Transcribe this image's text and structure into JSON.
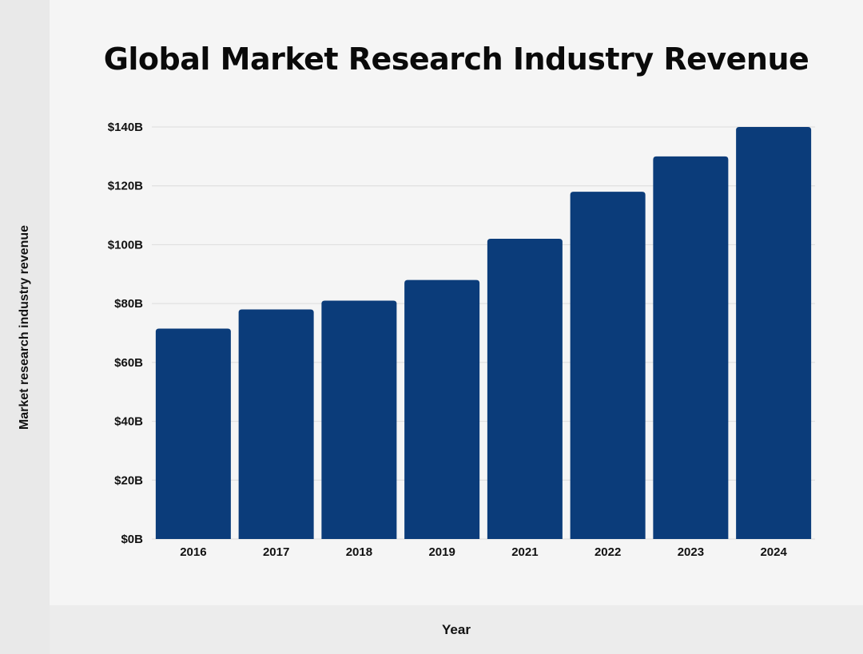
{
  "chart_data": {
    "type": "bar",
    "title": "Global Market Research Industry Revenue",
    "xlabel": "Year",
    "ylabel": "Market research industry revenue",
    "categories": [
      "2016",
      "2017",
      "2018",
      "2019",
      "2021",
      "2022",
      "2023",
      "2024"
    ],
    "values": [
      71.5,
      78,
      81,
      88,
      102,
      118,
      130,
      140
    ],
    "unit_prefix": "$",
    "unit_suffix": "B",
    "ylim": [
      0,
      140
    ],
    "yticks": [
      0,
      20,
      40,
      60,
      80,
      100,
      120,
      140
    ],
    "ytick_labels": [
      "$0B",
      "$20B",
      "$40B",
      "$60B",
      "$80B",
      "$100B",
      "$120B",
      "$140B"
    ],
    "grid": true,
    "legend": "none",
    "bar_color": "#0b3c7a",
    "grid_color": "#dcdcdc"
  }
}
